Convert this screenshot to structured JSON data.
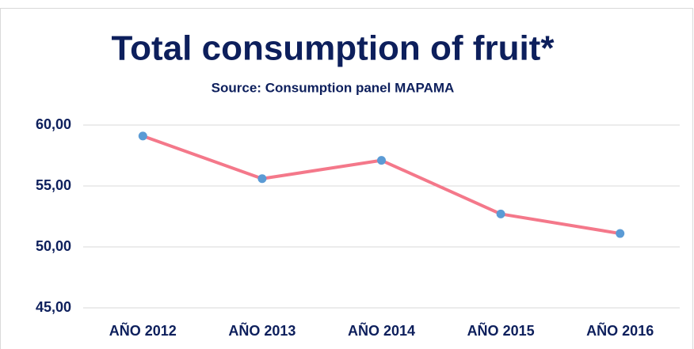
{
  "chart_data": {
    "type": "line",
    "title": "Total consumption of fruit*",
    "subtitle": "Source: Consumption panel MAPAMA",
    "categories": [
      "AÑO 2012",
      "AÑO 2013",
      "AÑO 2014",
      "AÑO 2015",
      "AÑO 2016"
    ],
    "series": [
      {
        "name": "Total consumption of fruit",
        "color": "#f4788a",
        "marker_color": "#5b9bd5",
        "values": [
          59.1,
          55.6,
          57.1,
          52.7,
          51.1
        ]
      }
    ],
    "ylim": [
      45,
      60
    ],
    "yticks": [
      {
        "value": 45,
        "label": "45,00"
      },
      {
        "value": 50,
        "label": "50,00"
      },
      {
        "value": 55,
        "label": "55,00"
      },
      {
        "value": 60,
        "label": "60,00"
      }
    ],
    "grid": true
  }
}
